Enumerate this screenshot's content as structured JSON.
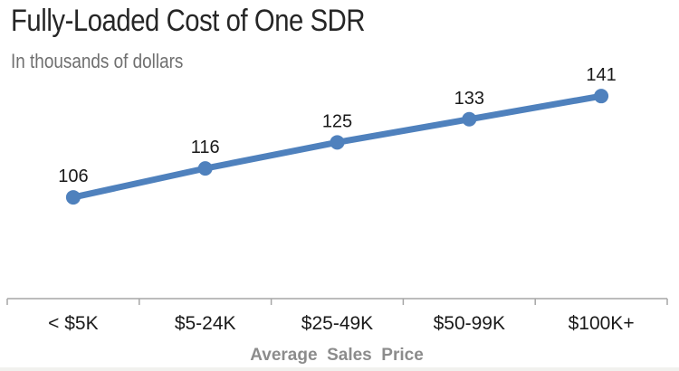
{
  "chart_data": {
    "type": "line",
    "title": "Fully-Loaded Cost of One SDR",
    "subtitle": "In thousands of dollars",
    "xlabel": "Average  Sales  Price",
    "ylabel": "",
    "categories": [
      "< $5K",
      "$5-24K",
      "$25-49K",
      "$50-99K",
      "$100K+"
    ],
    "series": [
      {
        "name": "Fully-Loaded Cost",
        "values": [
          106,
          116,
          125,
          133,
          141
        ]
      }
    ],
    "data_labels": [
      "106",
      "116",
      "125",
      "133",
      "141"
    ],
    "ylim": [
      71,
      152
    ],
    "grid": false,
    "legend": "none",
    "colors": {
      "line": "#4f81bd",
      "axis": "#a6a6a6",
      "label": "#1a1a1a",
      "xlabel": "#8c8c8c"
    }
  }
}
